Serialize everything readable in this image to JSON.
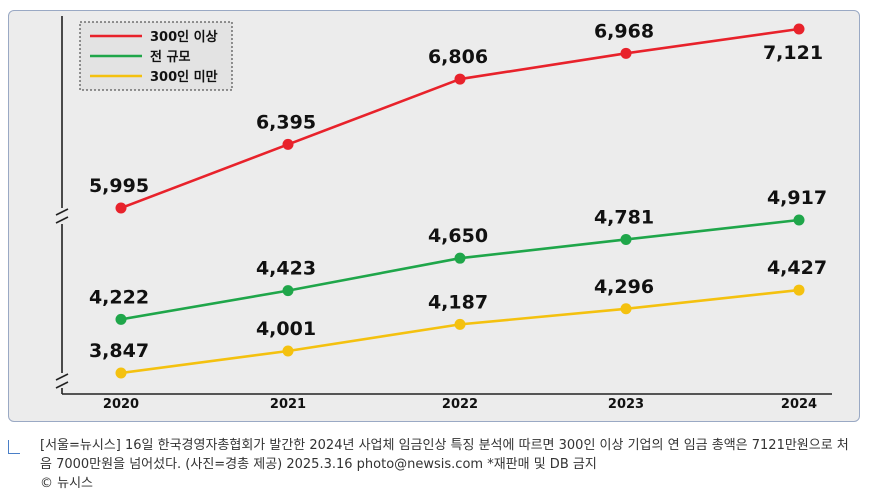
{
  "chart_data": {
    "type": "line",
    "categories": [
      "2020",
      "2021",
      "2022",
      "2023",
      "2024"
    ],
    "series": [
      {
        "name": "300인 이상",
        "color": "#e8222b",
        "values": [
          5995,
          6395,
          6806,
          6968,
          7121
        ],
        "labels": [
          "5,995",
          "6,395",
          "6,806",
          "6,968",
          "7,121"
        ]
      },
      {
        "name": "전 규모",
        "color": "#1fa64a",
        "values": [
          4222,
          4423,
          4650,
          4781,
          4917
        ],
        "labels": [
          "4,222",
          "4,423",
          "4,650",
          "4,781",
          "4,917"
        ]
      },
      {
        "name": "300인 미만",
        "color": "#f4c10f",
        "values": [
          3847,
          4001,
          4187,
          4296,
          4427
        ],
        "labels": [
          "3,847",
          "4,001",
          "4,187",
          "4,296",
          "4,427"
        ]
      }
    ],
    "title": "",
    "xlabel": "",
    "ylabel": "",
    "axis_break": true,
    "legend_position": "top-left",
    "grid": false
  },
  "caption": {
    "text": "[서울=뉴시스] 16일 한국경영자총협회가 발간한 2024년 사업체 임금인상 특징 분석에 따르면 300인 이상 기업의 연 임금 총액은 7121만원으로 처음 7000만원을 넘어섰다. (사진=경총 제공) 2025.3.16 photo@newsis.com *재판매 및 DB 금지",
    "credit": "© 뉴시스"
  }
}
